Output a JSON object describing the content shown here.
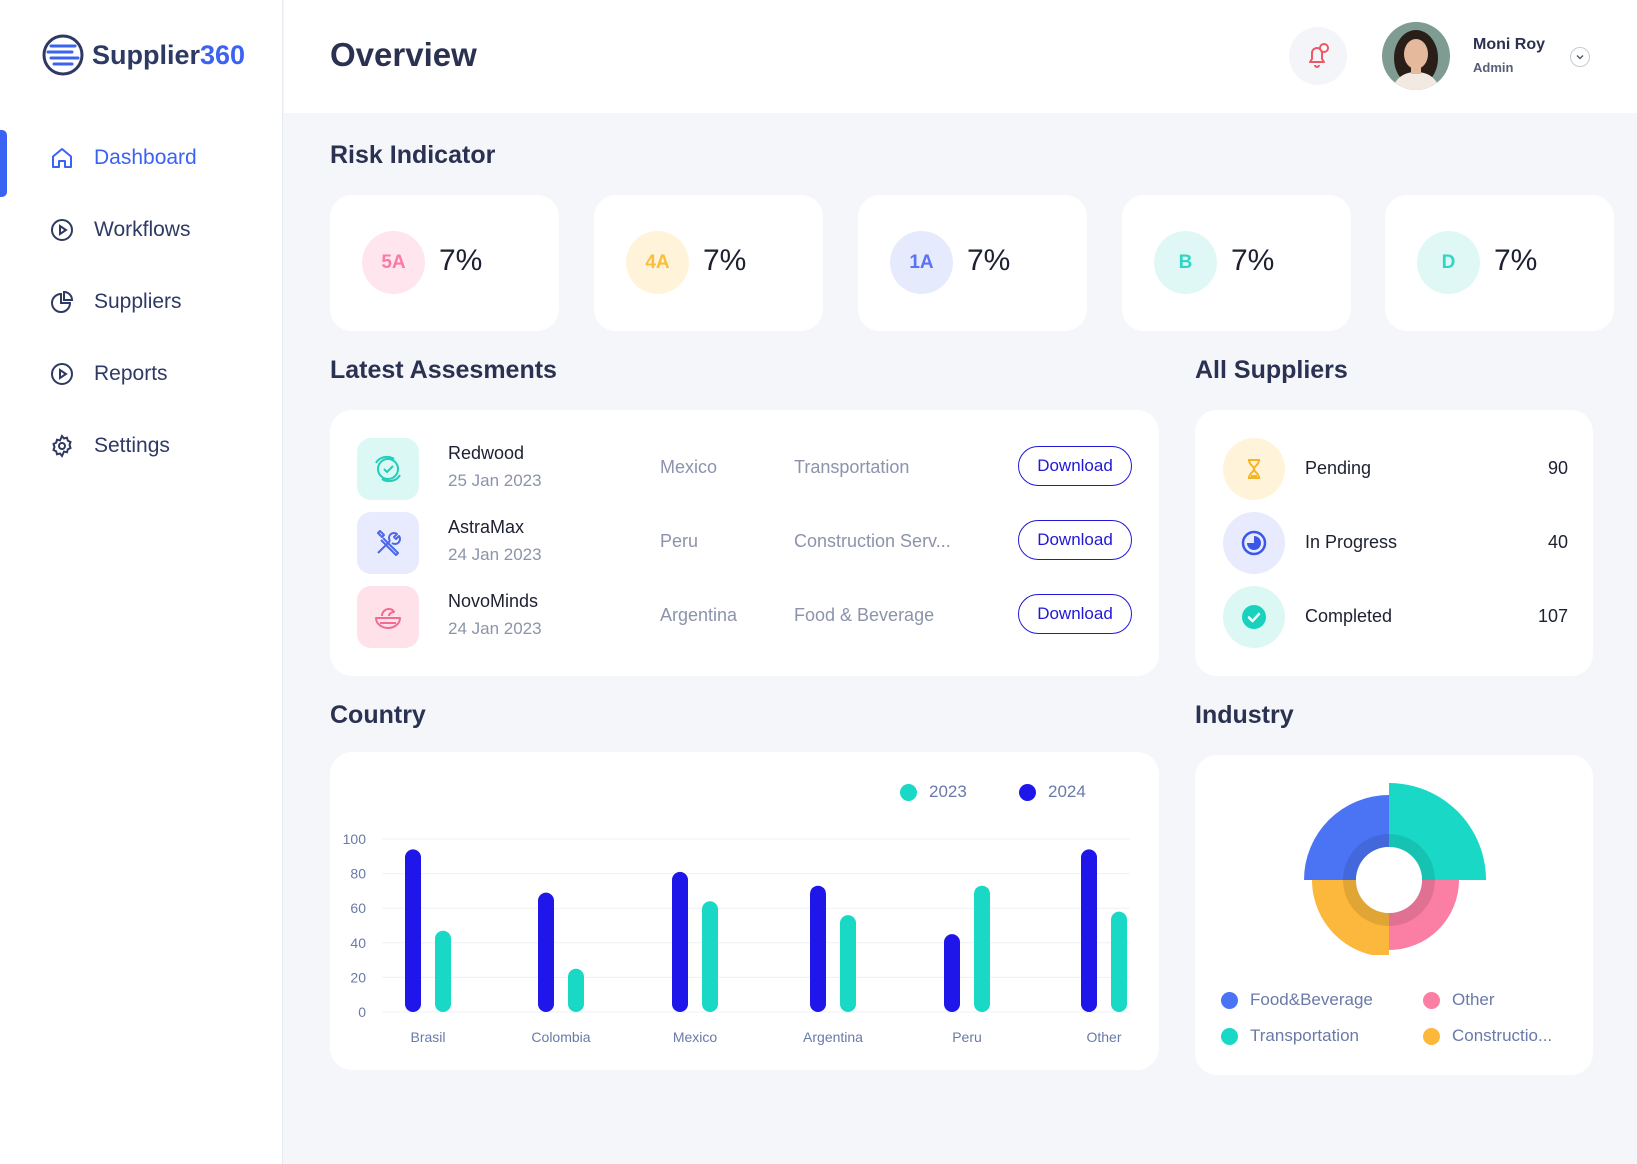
{
  "app": {
    "logo_prefix": "Supplier",
    "logo_suffix": "360",
    "page_title": "Overview"
  },
  "sidebar": {
    "items": [
      {
        "label": "Dashboard",
        "icon": "home-icon",
        "active": true
      },
      {
        "label": "Workflows",
        "icon": "play-circle-icon",
        "active": false
      },
      {
        "label": "Suppliers",
        "icon": "pie-icon",
        "active": false
      },
      {
        "label": "Reports",
        "icon": "play-circle-icon",
        "active": false
      },
      {
        "label": "Settings",
        "icon": "gear-icon",
        "active": false
      }
    ]
  },
  "user": {
    "name": "Moni Roy",
    "role": "Admin"
  },
  "risk": {
    "title": "Risk Indicator",
    "cards": [
      {
        "grade": "5A",
        "value": "7%",
        "color": "#f97aa2",
        "bg": "#ffe6ee"
      },
      {
        "grade": "4A",
        "value": "7%",
        "color": "#fbbd3a",
        "bg": "#fff4d9"
      },
      {
        "grade": "1A",
        "value": "7%",
        "color": "#5b73f0",
        "bg": "#e6eafd"
      },
      {
        "grade": "B",
        "value": "7%",
        "color": "#2fd6c4",
        "bg": "#e0f8f5"
      },
      {
        "grade": "D",
        "value": "7%",
        "color": "#2fd6c4",
        "bg": "#e0f8f5"
      }
    ]
  },
  "assessments": {
    "title": "Latest Assesments",
    "download_label": "Download",
    "rows": [
      {
        "name": "Redwood",
        "date": "25 Jan 2023",
        "country": "Mexico",
        "industry": "Transportation",
        "icon": "transport-icon"
      },
      {
        "name": "AstraMax",
        "date": "24 Jan 2023",
        "country": "Peru",
        "industry": "Construction Serv...",
        "icon": "tools-icon"
      },
      {
        "name": "NovoMinds",
        "date": "24 Jan 2023",
        "country": "Argentina",
        "industry": "Food & Beverage",
        "icon": "food-bowl-icon"
      }
    ]
  },
  "suppliers": {
    "title": "All Suppliers",
    "rows": [
      {
        "label": "Pending",
        "count": "90",
        "icon": "hourglass-icon"
      },
      {
        "label": "In Progress",
        "count": "40",
        "icon": "progress-clock-icon"
      },
      {
        "label": "Completed",
        "count": "107",
        "icon": "check-circle-icon"
      }
    ]
  },
  "country": {
    "title": "Country"
  },
  "industry": {
    "title": "Industry",
    "legend": [
      {
        "label": "Food&Beverage",
        "color": "#4b74f5"
      },
      {
        "label": "Other",
        "color": "#fb7ea4"
      },
      {
        "label": "Transportation",
        "color": "#19d9c6"
      },
      {
        "label": "Constructio...",
        "color": "#fbb83c"
      }
    ]
  },
  "chart_data": [
    {
      "type": "bar",
      "title": "Country",
      "categories": [
        "Brasil",
        "Colombia",
        "Mexico",
        "Argentina",
        "Peru",
        "Other"
      ],
      "series": [
        {
          "name": "2024",
          "color": "#1f17ea",
          "values": [
            94,
            69,
            81,
            73,
            45,
            94
          ]
        },
        {
          "name": "2023",
          "color": "#19d9c6",
          "values": [
            47,
            25,
            64,
            56,
            73,
            58
          ]
        }
      ],
      "legend_order": [
        "2023",
        "2024"
      ],
      "yticks": [
        0,
        20,
        40,
        60,
        80,
        100
      ],
      "ylim": [
        0,
        100
      ],
      "xlabel": "",
      "ylabel": ""
    },
    {
      "type": "pie",
      "title": "Industry",
      "slices": [
        {
          "label": "Transportation",
          "value": 25,
          "color": "#19d9c6"
        },
        {
          "label": "Other",
          "value": 25,
          "color": "#fb7ea4"
        },
        {
          "label": "Constructio...",
          "value": 25,
          "color": "#fbb83c"
        },
        {
          "label": "Food&Beverage",
          "value": 25,
          "color": "#4b74f5"
        }
      ]
    }
  ]
}
